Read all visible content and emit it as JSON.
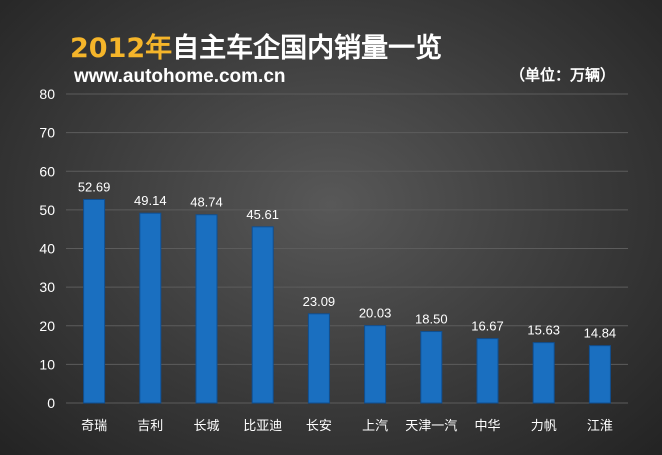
{
  "header": {
    "title_year": "2012年",
    "title_rest": "自主车企国内销量一览",
    "site": "www.autohome.com.cn",
    "unit": "（单位：万辆）"
  },
  "colors": {
    "bar": "#1a6fc0",
    "bar_edge": "#0f4f92",
    "grid": "#5c5c5c",
    "accent_year": "#f5b52a",
    "text": "#ffffff"
  },
  "chart_data": {
    "type": "bar",
    "title": "2012年自主车企国内销量一览",
    "ylabel": "（单位：万辆）",
    "xlabel": "",
    "ylim": [
      0,
      80
    ],
    "yticks": [
      0,
      10,
      20,
      30,
      40,
      50,
      60,
      70,
      80
    ],
    "grid": true,
    "categories": [
      "奇瑞",
      "吉利",
      "长城",
      "比亚迪",
      "长安",
      "上汽",
      "天津一汽",
      "中华",
      "力帆",
      "江淮"
    ],
    "values": [
      52.69,
      49.14,
      48.74,
      45.61,
      23.09,
      20.03,
      18.5,
      16.67,
      15.63,
      14.84
    ],
    "value_labels": [
      "52.69",
      "49.14",
      "48.74",
      "45.61",
      "23.09",
      "20.03",
      "18.50",
      "16.67",
      "15.63",
      "14.84"
    ]
  }
}
